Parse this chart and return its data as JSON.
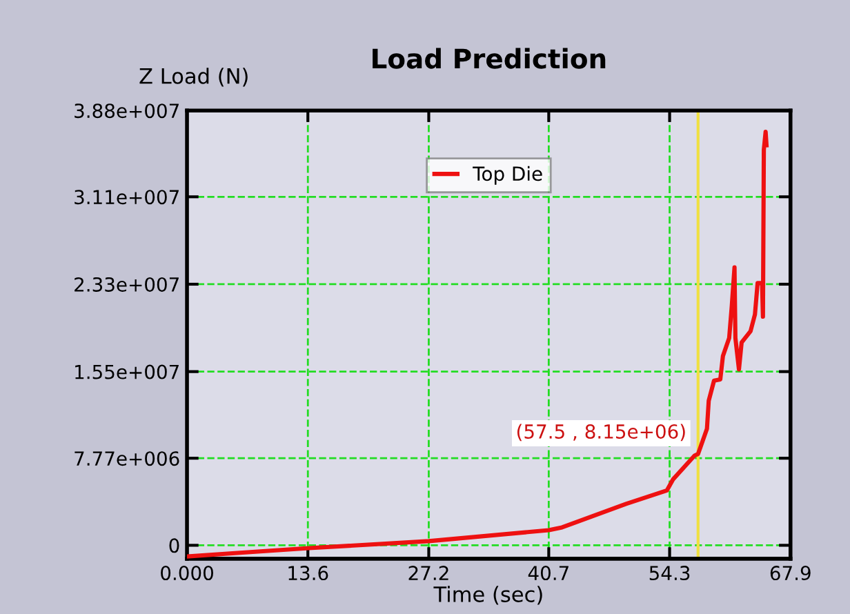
{
  "chart_data": {
    "type": "line",
    "title": "Load Prediction",
    "xlabel": "Time (sec)",
    "ylabel": "Z Load (N)",
    "x": [
      0,
      5.4,
      13.7,
      27.2,
      40.7,
      42.2,
      49.4,
      54.0,
      54.7,
      57.1,
      57.5,
      58.5,
      58.7,
      59.3,
      60.0,
      60.3,
      61.0,
      61.3,
      61.6,
      61.7,
      62.1,
      62.4,
      63.4,
      63.9,
      64.2,
      64.7,
      64.8,
      64.9,
      65.1,
      65.2
    ],
    "series": [
      {
        "name": "Top Die",
        "color": "#ee1111",
        "values": [
          -1000000.0,
          -700000.0,
          -250000.0,
          370000.0,
          1350000.0,
          1600000.0,
          3700000.0,
          4900000.0,
          5900000.0,
          8000000.0,
          8150000.0,
          10400000.0,
          12900000.0,
          14700000.0,
          14800000.0,
          16900000.0,
          18500000.0,
          21400000.0,
          24800000.0,
          18500000.0,
          15700000.0,
          18100000.0,
          19100000.0,
          20600000.0,
          23400000.0,
          23400000.0,
          20400000.0,
          35300000.0,
          36900000.0,
          35700000.0
        ]
      }
    ],
    "xlim": [
      0,
      67.9
    ],
    "ylim": [
      -1200000.0,
      38800000.0
    ],
    "xticks": [
      {
        "value": 0,
        "label": "0.000"
      },
      13.6,
      27.2,
      40.7,
      54.3,
      67.9
    ],
    "yticks": [
      {
        "value": 0,
        "label": "0"
      },
      {
        "value": 7770000.0,
        "label": "7.77e+006"
      },
      {
        "value": 15500000.0,
        "label": "1.55e+007"
      },
      {
        "value": 23300000.0,
        "label": "2.33e+007"
      },
      {
        "value": 31100000.0,
        "label": "3.11e+007"
      },
      {
        "value": 38800000.0,
        "label": "3.88e+007"
      }
    ],
    "ref_lines": [
      {
        "axis": "x",
        "value": 57.5,
        "label": null,
        "color": "#f0e040"
      }
    ],
    "annotations": [
      {
        "text": "(57.5 , 8.15e+06)",
        "x": 57.5,
        "y": 8150000.0
      }
    ],
    "grid": true,
    "legend": "top",
    "marker": "none",
    "line_style": "solid"
  }
}
